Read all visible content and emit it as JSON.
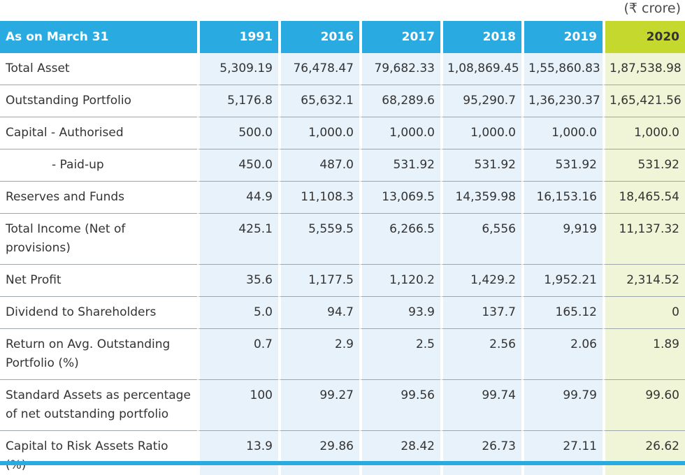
{
  "unit": "(₹ crore)",
  "header": {
    "label": "As on March 31",
    "years": [
      "1991",
      "2016",
      "2017",
      "2018",
      "2019",
      "2020"
    ]
  },
  "rows": [
    {
      "label": "Total Asset",
      "values": [
        "5,309.19",
        "76,478.47",
        "79,682.33",
        "1,08,869.45",
        "1,55,860.83",
        "1,87,538.98"
      ]
    },
    {
      "label": "Outstanding Portfolio",
      "values": [
        "5,176.8",
        "65,632.1",
        "68,289.6",
        "95,290.7",
        "1,36,230.37",
        "1,65,421.56"
      ]
    },
    {
      "label": "Capital - Authorised",
      "values": [
        "500.0",
        "1,000.0",
        "1,000.0",
        "1,000.0",
        "1,000.0",
        "1,000.0"
      ]
    },
    {
      "label": "- Paid-up",
      "values": [
        "450.0",
        "487.0",
        "531.92",
        "531.92",
        "531.92",
        "531.92"
      ]
    },
    {
      "label": "Reserves and Funds",
      "values": [
        "44.9",
        "11,108.3",
        "13,069.5",
        "14,359.98",
        "16,153.16",
        "18,465.54"
      ]
    },
    {
      "label": "Total Income (Net of provisions)",
      "values": [
        "425.1",
        "5,559.5",
        "6,266.5",
        "6,556",
        "9,919",
        "11,137.32"
      ]
    },
    {
      "label": "Net Profit",
      "values": [
        "35.6",
        "1,177.5",
        "1,120.2",
        "1,429.2",
        "1,952.21",
        "2,314.52"
      ]
    },
    {
      "label": "Dividend to Shareholders",
      "values": [
        "5.0",
        "94.7",
        "93.9",
        "137.7",
        "165.12",
        "0"
      ]
    },
    {
      "label": "Return on Avg. Outstanding Portfolio (%)",
      "values": [
        "0.7",
        "2.9",
        "2.5",
        "2.56",
        "2.06",
        "1.89"
      ]
    },
    {
      "label": "Standard Assets as percentage of net outstanding portfolio",
      "values": [
        "100",
        "99.27",
        "99.56",
        "99.74",
        "99.79",
        "99.60"
      ]
    },
    {
      "label": "Capital to Risk Assets Ratio (%)",
      "values": [
        "13.9",
        "29.86",
        "28.42",
        "26.73",
        "27.11",
        "26.62"
      ]
    }
  ],
  "colors": {
    "header": "#29abe2",
    "highlight_header": "#c5d82e",
    "cell": "#e8f2fa",
    "highlight_cell": "#f1f5d7"
  }
}
